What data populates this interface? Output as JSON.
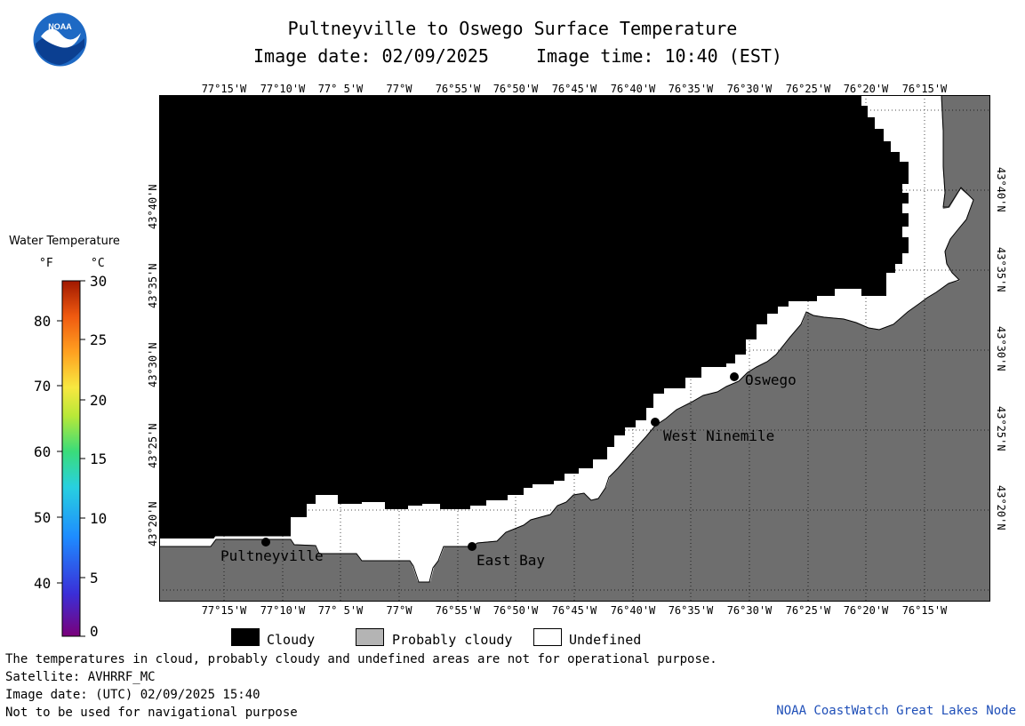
{
  "header": {
    "title": "Pultneyville to Oswego Surface Temperature",
    "date_label": "Image date: 02/09/2025",
    "time_label": "Image time: 10:40 (EST)"
  },
  "colors": {
    "cloudy": "#000000",
    "probably_cloudy": "#b4b4b4",
    "undefined": "#ffffff",
    "land": "#6e6e6e"
  },
  "longitude_labels": [
    "77°15'W",
    "77°10'W",
    "77° 5'W",
    "77°W",
    "76°55'W",
    "76°50'W",
    "76°45'W",
    "76°40'W",
    "76°35'W",
    "76°30'W",
    "76°25'W",
    "76°20'W",
    "76°15'W"
  ],
  "latitude_labels": [
    "43°40'N",
    "43°35'N",
    "43°30'N",
    "43°25'N",
    "43°20'N"
  ],
  "places": [
    {
      "name": "Oswego"
    },
    {
      "name": "West Ninemile"
    },
    {
      "name": "Pultneyville"
    },
    {
      "name": "East Bay"
    }
  ],
  "colorbar": {
    "title": "Water Temperature",
    "unit_f": "°F",
    "unit_c": "°C",
    "f_ticks": [
      "80",
      "70",
      "60",
      "50",
      "40"
    ],
    "c_ticks": [
      "30",
      "25",
      "20",
      "15",
      "10",
      "5",
      "0"
    ]
  },
  "legend": {
    "cloudy": "Cloudy",
    "probably_cloudy": "Probably cloudy",
    "undefined": "Undefined"
  },
  "notes": [
    "The temperatures in cloud, probably cloudy and undefined areas are not for operational purpose.",
    "Satellite: AVHRRF_MC",
    "Image date: (UTC) 02/09/2025  15:40",
    "Not to be used for navigational purpose"
  ],
  "credit": "NOAA CoastWatch Great Lakes Node",
  "logo_text": "NOAA"
}
